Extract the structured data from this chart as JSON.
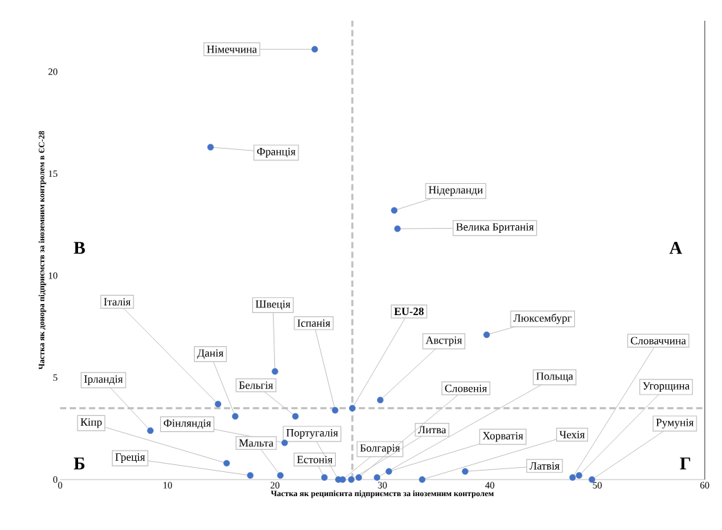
{
  "chart_data": {
    "type": "scatter",
    "xlabel": "Частка як реципієнта підприємств за іноземним контролем",
    "ylabel": "Частка як донора підприємств за іноземним контролем в ЄС-28",
    "xlim": [
      0,
      60
    ],
    "ylim": [
      0,
      22.5
    ],
    "xticks": [
      0,
      10,
      20,
      30,
      40,
      50,
      60
    ],
    "yticks": [
      0,
      5,
      10,
      15,
      20
    ],
    "grid": false,
    "legend": false,
    "marker": "circle",
    "series": [
      {
        "color": "#4472c4",
        "x": [
          23.7,
          14.0,
          31.1,
          31.4,
          39.7,
          29.8,
          27.2,
          25.6,
          20.0,
          16.3,
          14.7,
          21.9,
          8.4,
          20.9,
          15.5,
          17.7,
          20.5,
          24.6,
          25.9,
          26.3,
          27.1,
          27.8,
          29.5,
          30.6,
          37.7,
          33.7,
          47.7,
          48.3,
          49.5
        ],
        "values": [
          21.1,
          16.3,
          13.2,
          12.3,
          7.1,
          3.9,
          3.5,
          3.4,
          5.3,
          3.1,
          3.7,
          3.1,
          2.4,
          1.8,
          0.8,
          0.2,
          0.2,
          0.1,
          0.0,
          0.0,
          0.0,
          0.1,
          0.1,
          0.4,
          0.4,
          0.0,
          0.1,
          0.2,
          0.0
        ]
      }
    ],
    "ref_lines": [
      {
        "axis": "x",
        "value": 27.2,
        "color": "#bfbfbf",
        "line_style": "dashed"
      },
      {
        "axis": "y",
        "value": 3.5,
        "color": "#bfbfbf",
        "line_style": "dashed"
      }
    ],
    "annotations": [
      {
        "text": "Німеччина",
        "x": 23.7,
        "y": 21.1
      },
      {
        "text": "Франція",
        "x": 14.0,
        "y": 16.3
      },
      {
        "text": "Нідерланди",
        "x": 31.1,
        "y": 13.2
      },
      {
        "text": "Велика Британія",
        "x": 31.4,
        "y": 12.3
      },
      {
        "text": "Люксембург",
        "x": 39.7,
        "y": 7.1
      },
      {
        "text": "Австрія",
        "x": 29.8,
        "y": 3.9
      },
      {
        "text": "**EU-28**",
        "x": 27.2,
        "y": 3.5
      },
      {
        "text": "Іспанія",
        "x": 25.6,
        "y": 3.4
      },
      {
        "text": "Швеція",
        "x": 20.0,
        "y": 5.3
      },
      {
        "text": "Данія",
        "x": 16.3,
        "y": 3.1
      },
      {
        "text": "Італія",
        "x": 14.7,
        "y": 3.7
      },
      {
        "text": "Бельгія",
        "x": 21.9,
        "y": 3.1
      },
      {
        "text": "Ірландія",
        "x": 8.4,
        "y": 2.4
      },
      {
        "text": "Фінляндія",
        "x": 20.9,
        "y": 1.8
      },
      {
        "text": "Кіпр",
        "x": 15.5,
        "y": 0.8
      },
      {
        "text": "Греція",
        "x": 17.7,
        "y": 0.2
      },
      {
        "text": "Мальта",
        "x": 20.5,
        "y": 0.2
      },
      {
        "text": "Естонія",
        "x": 24.6,
        "y": 0.1
      },
      {
        "text": "Португалія",
        "x": 25.9,
        "y": 0.0
      },
      {
        "text": "Болгарія",
        "x": 26.3,
        "y": 0.0
      },
      {
        "text": "Литва",
        "x": 27.1,
        "y": 0.0
      },
      {
        "text": "Словенія",
        "x": 27.8,
        "y": 0.1
      },
      {
        "text": "Польща",
        "x": 29.5,
        "y": 0.1
      },
      {
        "text": "Хорватія",
        "x": 30.6,
        "y": 0.4
      },
      {
        "text": "Латвія",
        "x": 37.7,
        "y": 0.4
      },
      {
        "text": "Чехія",
        "x": 33.7,
        "y": 0.0
      },
      {
        "text": "Словаччина",
        "x": 47.7,
        "y": 0.1
      },
      {
        "text": "Угорщина",
        "x": 48.3,
        "y": 0.2
      },
      {
        "text": "Румунія",
        "x": 49.5,
        "y": 0.0
      },
      "А",
      "В",
      "Б",
      "Г"
    ]
  }
}
